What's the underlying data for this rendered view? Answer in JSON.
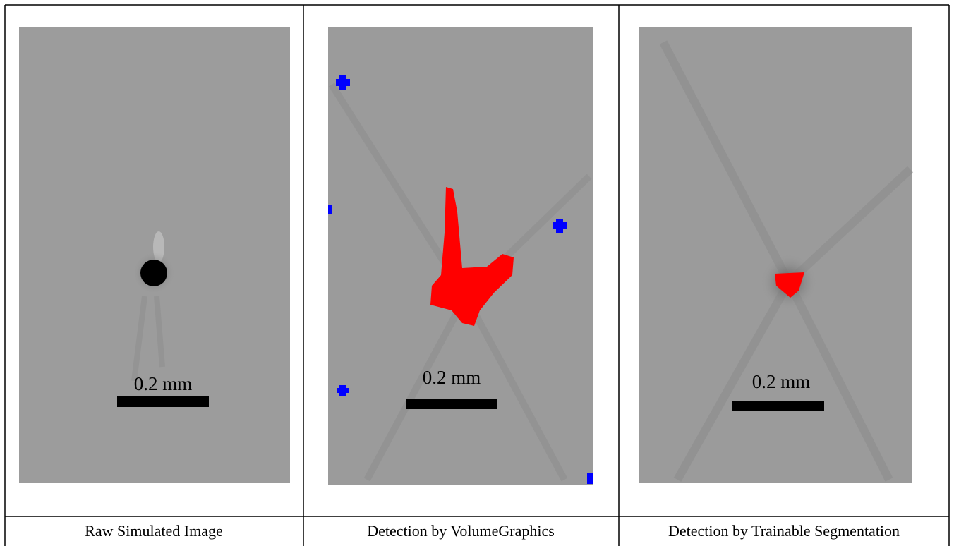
{
  "panels": [
    {
      "scale_label": "0.2 mm",
      "caption": "Raw Simulated Image"
    },
    {
      "scale_label": "0.2 mm",
      "caption": "Detection by VolumeGraphics"
    },
    {
      "scale_label": "0.2 mm",
      "caption": "Detection by Trainable Segmentation"
    }
  ]
}
